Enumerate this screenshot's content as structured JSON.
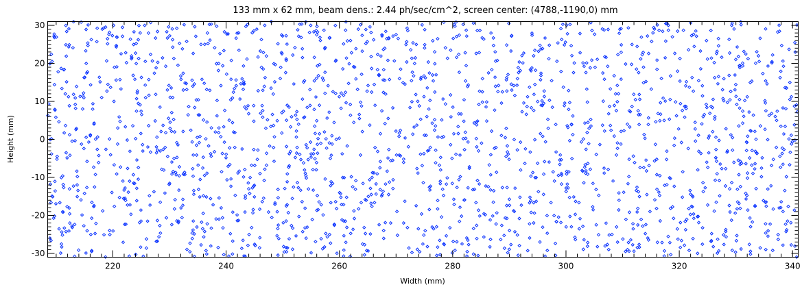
{
  "chart_data": {
    "type": "scatter",
    "title": "133 mm x 62 mm, beam dens.: 2.44 ph/sec/cm^2, screen center: (4788,-1190,0) mm",
    "xlabel": "Width (mm)",
    "ylabel": "Height (mm)",
    "xlim": [
      208.5,
      341
    ],
    "ylim": [
      -31,
      31
    ],
    "xticks": [
      220,
      240,
      260,
      280,
      300,
      320,
      340
    ],
    "yticks": [
      -30,
      -20,
      -10,
      0,
      10,
      20,
      30
    ],
    "xtick_labels": [
      "220",
      "240",
      "260",
      "280",
      "300",
      "320",
      "340"
    ],
    "ytick_labels": [
      "-30",
      "-20",
      "-10",
      "0",
      "10",
      "20",
      "30"
    ],
    "marker": "diamond",
    "color": "#0a32ff",
    "grid": false,
    "legend": "none",
    "point_count": 2000,
    "distribution": "uniform over the plotted area"
  }
}
